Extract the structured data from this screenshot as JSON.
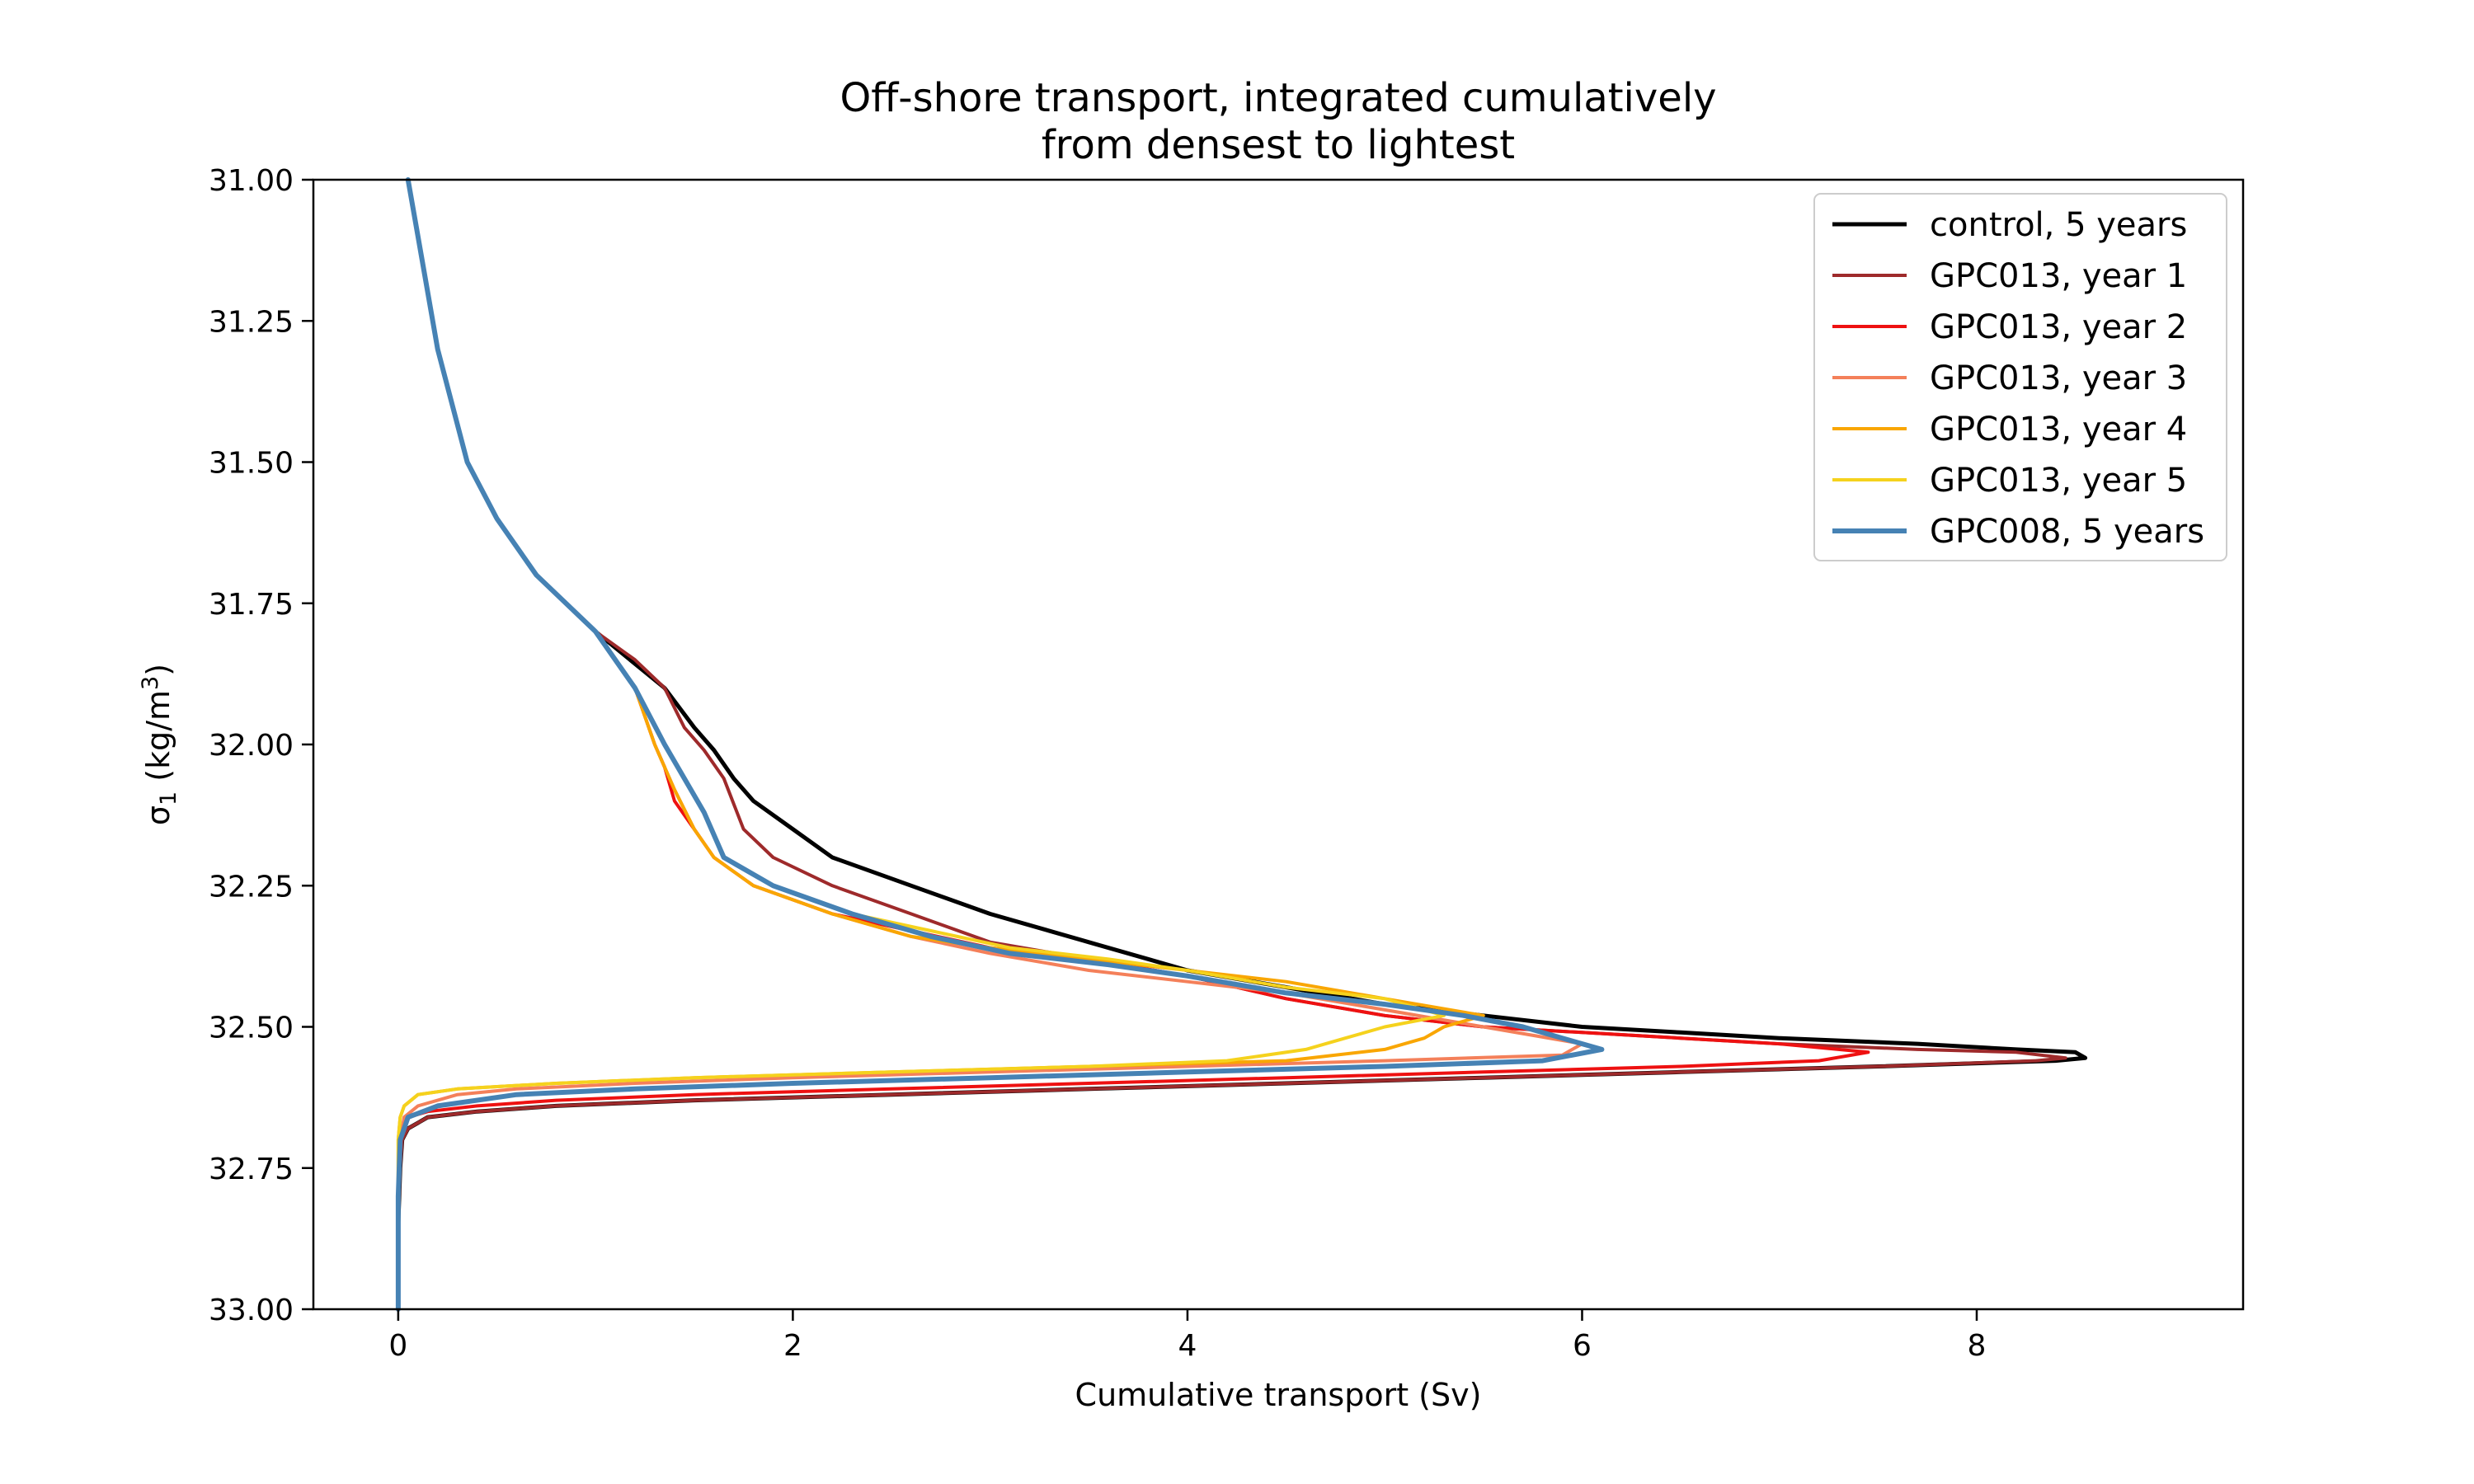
{
  "chart_data": {
    "type": "line",
    "title": [
      "Off-shore transport, integrated cumulatively",
      "from densest to lightest"
    ],
    "xlabel": "Cumulative transport (Sv)",
    "ylabel": {
      "prefix": "σ",
      "subscript": "1",
      "text": " (kg/m",
      "superscript": "3",
      "suffix": ")"
    },
    "xlim": [
      -0.43,
      9.35
    ],
    "ylim": [
      33.0,
      31.0
    ],
    "y_inverted": true,
    "xticks": [
      0,
      2,
      4,
      6,
      8
    ],
    "xtick_labels": [
      "0",
      "2",
      "4",
      "6",
      "8"
    ],
    "yticks": [
      31.0,
      31.25,
      31.5,
      31.75,
      32.0,
      32.25,
      32.5,
      32.75,
      33.0
    ],
    "ytick_labels": [
      "31.00",
      "31.25",
      "31.50",
      "31.75",
      "32.00",
      "32.25",
      "32.50",
      "32.75",
      "33.00"
    ],
    "grid": false,
    "legend_position": "top-right",
    "series": [
      {
        "name": "control, 5 years",
        "color": "#000000",
        "width": 5,
        "x": [
          0.05,
          0.1,
          0.2,
          0.35,
          0.5,
          0.7,
          1.0,
          1.35,
          1.5,
          1.6,
          1.7,
          1.8,
          2.0,
          2.2,
          2.6,
          3.0,
          3.5,
          4.0,
          4.5,
          5.0,
          5.5,
          6.0,
          6.5,
          7.0,
          7.7,
          8.2,
          8.5,
          8.55,
          8.4,
          7.5,
          6.5,
          5.5,
          4.5,
          3.5,
          2.5,
          1.5,
          0.8,
          0.4,
          0.15,
          0.05,
          0.02,
          0.01,
          0.0,
          0.0
        ],
        "y": [
          31.0,
          31.1,
          31.3,
          31.5,
          31.6,
          31.7,
          31.8,
          31.9,
          31.97,
          32.01,
          32.06,
          32.1,
          32.15,
          32.2,
          32.25,
          32.3,
          32.35,
          32.4,
          32.43,
          32.46,
          32.48,
          32.5,
          32.51,
          32.52,
          32.53,
          32.54,
          32.545,
          32.555,
          32.56,
          32.57,
          32.58,
          32.59,
          32.6,
          32.61,
          32.62,
          32.63,
          32.64,
          32.65,
          32.66,
          32.68,
          32.7,
          32.75,
          32.85,
          33.0
        ]
      },
      {
        "name": "GPC013, year 1",
        "color": "#9e2a2b",
        "width": 4,
        "x": [
          0.05,
          0.1,
          0.2,
          0.35,
          0.5,
          0.7,
          1.0,
          1.2,
          1.35,
          1.45,
          1.55,
          1.65,
          1.75,
          1.9,
          2.2,
          2.6,
          3.0,
          3.5,
          4.0,
          4.5,
          5.0,
          5.5,
          6.0,
          6.5,
          7.0,
          7.7,
          8.2,
          8.45,
          8.3,
          7.5,
          6.5,
          5.5,
          4.5,
          3.5,
          2.5,
          1.5,
          0.8,
          0.4,
          0.15,
          0.05,
          0.02,
          0.01,
          0.0,
          0.0
        ],
        "y": [
          31.0,
          31.1,
          31.3,
          31.5,
          31.6,
          31.7,
          31.8,
          31.85,
          31.9,
          31.97,
          32.01,
          32.06,
          32.15,
          32.2,
          32.25,
          32.3,
          32.35,
          32.38,
          32.41,
          32.45,
          32.48,
          32.5,
          32.51,
          32.52,
          32.53,
          32.54,
          32.545,
          32.555,
          32.56,
          32.57,
          32.58,
          32.59,
          32.6,
          32.61,
          32.62,
          32.63,
          32.64,
          32.65,
          32.66,
          32.68,
          32.7,
          32.75,
          32.85,
          33.0
        ]
      },
      {
        "name": "GPC013, year 2",
        "color": "#ee1111",
        "width": 4,
        "x": [
          0.05,
          0.1,
          0.2,
          0.35,
          0.5,
          0.7,
          1.0,
          1.2,
          1.3,
          1.35,
          1.4,
          1.5,
          1.6,
          1.8,
          2.2,
          2.6,
          3.0,
          3.5,
          4.0,
          4.5,
          5.0,
          5.5,
          6.0,
          6.5,
          7.0,
          7.45,
          7.2,
          6.5,
          5.5,
          4.5,
          3.5,
          2.5,
          1.5,
          0.8,
          0.4,
          0.15,
          0.05,
          0.02,
          0.01,
          0.0,
          0.0
        ],
        "y": [
          31.0,
          31.1,
          31.3,
          31.5,
          31.6,
          31.7,
          31.8,
          31.9,
          32.0,
          32.04,
          32.1,
          32.15,
          32.2,
          32.25,
          32.3,
          32.33,
          32.36,
          32.38,
          32.41,
          32.45,
          32.48,
          32.5,
          32.51,
          32.52,
          32.53,
          32.545,
          32.56,
          32.57,
          32.58,
          32.59,
          32.6,
          32.61,
          32.62,
          32.63,
          32.64,
          32.65,
          32.66,
          32.68,
          32.72,
          32.8,
          33.0
        ]
      },
      {
        "name": "GPC013, year 3",
        "color": "#f4805a",
        "width": 4,
        "x": [
          0.05,
          0.1,
          0.2,
          0.35,
          0.5,
          0.7,
          1.0,
          1.2,
          1.3,
          1.4,
          1.5,
          1.6,
          1.8,
          2.2,
          2.6,
          3.0,
          3.5,
          4.0,
          4.5,
          5.0,
          5.5,
          6.0,
          5.9,
          5.0,
          4.0,
          3.0,
          2.0,
          1.2,
          0.6,
          0.3,
          0.1,
          0.03,
          0.01,
          0.0,
          0.0
        ],
        "y": [
          31.0,
          31.1,
          31.3,
          31.5,
          31.6,
          31.7,
          31.8,
          31.9,
          32.0,
          32.08,
          32.15,
          32.2,
          32.25,
          32.3,
          32.34,
          32.37,
          32.4,
          32.42,
          32.44,
          32.47,
          32.5,
          32.53,
          32.55,
          32.56,
          32.57,
          32.58,
          32.59,
          32.6,
          32.61,
          32.62,
          32.64,
          32.66,
          32.7,
          32.8,
          33.0
        ]
      },
      {
        "name": "GPC013, year 4",
        "color": "#f9a602",
        "width": 4,
        "x": [
          0.05,
          0.1,
          0.2,
          0.35,
          0.5,
          0.7,
          1.0,
          1.2,
          1.3,
          1.4,
          1.5,
          1.6,
          1.8,
          2.2,
          2.6,
          3.0,
          3.5,
          4.0,
          4.5,
          5.0,
          5.5,
          5.3,
          5.2,
          5.0,
          4.5,
          3.5,
          2.5,
          1.5,
          0.8,
          0.3,
          0.1,
          0.03,
          0.01,
          0.0,
          0.0
        ],
        "y": [
          31.0,
          31.1,
          31.3,
          31.5,
          31.6,
          31.7,
          31.8,
          31.9,
          32.0,
          32.08,
          32.15,
          32.2,
          32.25,
          32.3,
          32.34,
          32.36,
          32.38,
          32.4,
          32.42,
          32.45,
          32.48,
          32.5,
          32.52,
          32.54,
          32.56,
          32.57,
          32.58,
          32.59,
          32.6,
          32.61,
          32.62,
          32.64,
          32.66,
          32.7,
          33.0
        ]
      },
      {
        "name": "GPC013, year 5",
        "color": "#f5d21d",
        "width": 4,
        "x": [
          0.05,
          0.1,
          0.2,
          0.35,
          0.5,
          0.7,
          1.0,
          1.2,
          1.35,
          1.45,
          1.55,
          1.65,
          1.9,
          2.3,
          2.7,
          3.1,
          3.6,
          4.0,
          4.5,
          5.0,
          5.3,
          5.0,
          4.8,
          4.6,
          4.2,
          3.5,
          2.5,
          1.5,
          0.8,
          0.3,
          0.1,
          0.03,
          0.01,
          0.0,
          0.0
        ],
        "y": [
          31.0,
          31.1,
          31.3,
          31.5,
          31.6,
          31.7,
          31.8,
          31.9,
          32.0,
          32.06,
          32.12,
          32.2,
          32.25,
          32.3,
          32.33,
          32.36,
          32.38,
          32.4,
          32.43,
          32.45,
          32.48,
          32.5,
          32.52,
          32.54,
          32.56,
          32.57,
          32.58,
          32.59,
          32.6,
          32.61,
          32.62,
          32.64,
          32.66,
          32.7,
          33.0
        ]
      },
      {
        "name": "GPC008, 5 years",
        "color": "#4682b4",
        "width": 6,
        "x": [
          0.05,
          0.1,
          0.2,
          0.35,
          0.5,
          0.7,
          1.0,
          1.2,
          1.35,
          1.45,
          1.55,
          1.65,
          1.9,
          2.3,
          2.7,
          3.1,
          3.6,
          4.0,
          4.5,
          5.0,
          5.4,
          5.7,
          5.9,
          6.1,
          5.8,
          5.0,
          4.0,
          3.0,
          2.0,
          1.2,
          0.6,
          0.2,
          0.05,
          0.01,
          0.0,
          0.0
        ],
        "y": [
          31.0,
          31.1,
          31.3,
          31.5,
          31.6,
          31.7,
          31.8,
          31.9,
          32.0,
          32.06,
          32.12,
          32.2,
          32.25,
          32.3,
          32.34,
          32.37,
          32.39,
          32.41,
          32.44,
          32.46,
          32.48,
          32.5,
          32.52,
          32.54,
          32.56,
          32.57,
          32.58,
          32.59,
          32.6,
          32.61,
          32.62,
          32.64,
          32.66,
          32.7,
          32.8,
          33.0
        ]
      }
    ]
  }
}
